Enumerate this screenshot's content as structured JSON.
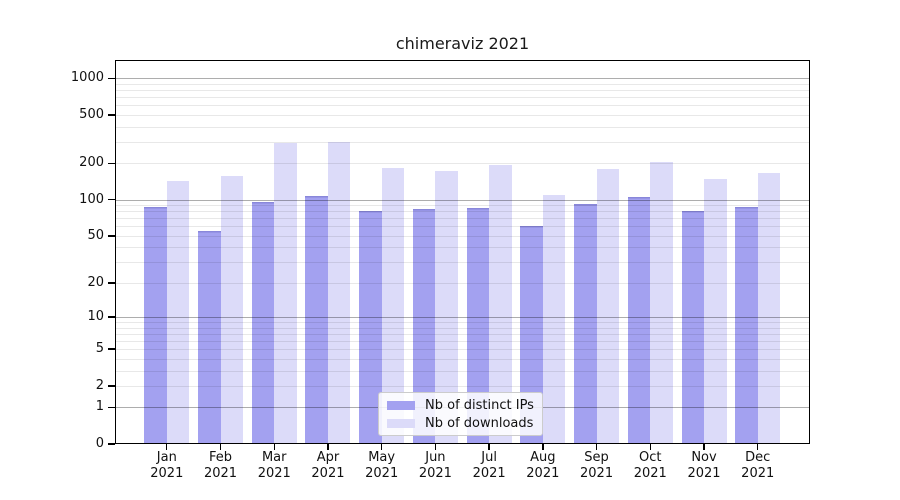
{
  "figure": {
    "title": "chimeraviz 2021"
  },
  "chart_data": {
    "type": "bar",
    "title": "chimeraviz 2021",
    "categories": [
      "Jan",
      "Feb",
      "Mar",
      "Apr",
      "May",
      "Jun",
      "Jul",
      "Aug",
      "Sep",
      "Oct",
      "Nov",
      "Dec"
    ],
    "category_year": "2021",
    "series": [
      {
        "name": "Nb of distinct IPs",
        "color": "#a3a1f0",
        "values": [
          87,
          55,
          96,
          108,
          80,
          84,
          85,
          61,
          93,
          106,
          80,
          87
        ]
      },
      {
        "name": "Nb of downloads",
        "color": "#dcdbf9",
        "values": [
          143,
          158,
          292,
          298,
          182,
          173,
          193,
          110,
          180,
          205,
          148,
          167
        ]
      }
    ],
    "xlabel": "",
    "ylabel": "",
    "y_scale": "log10(value+1)",
    "y_ticks": [
      0,
      1,
      2,
      5,
      10,
      20,
      50,
      100,
      200,
      500,
      1000
    ],
    "ylim": [
      0,
      1390
    ],
    "grid": {
      "enabled": true,
      "major": [
        1,
        10,
        100,
        1000
      ],
      "minor": [
        2,
        3,
        4,
        5,
        6,
        7,
        8,
        9,
        20,
        30,
        40,
        50,
        60,
        70,
        80,
        90,
        200,
        300,
        400,
        500,
        600,
        700,
        800,
        900
      ]
    },
    "legend": {
      "position": "lower center",
      "entries": [
        "Nb of distinct IPs",
        "Nb of downloads"
      ]
    }
  },
  "colors": {
    "spine": "#000000",
    "text": "#111111",
    "major_grid": "rgba(0,0,0,0.32)",
    "minor_grid": "rgba(0,0,0,0.09)",
    "legend_border": "#cccccc",
    "legend_bg": "rgba(255,255,255,0.85)"
  }
}
